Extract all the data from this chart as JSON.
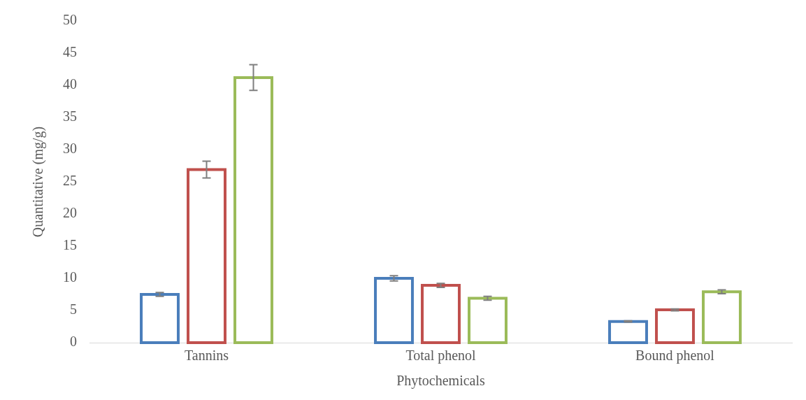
{
  "chart_data": {
    "type": "bar",
    "xlabel": "Phytochemicals",
    "ylabel": "Quantitative (mg/g)",
    "categories": [
      "Tannins",
      "Total phenol",
      "Bound phenol"
    ],
    "series": [
      {
        "color": "#4a7ebb",
        "values": [
          7.5,
          10.0,
          3.3
        ],
        "errors": [
          0.3,
          0.4,
          0.1
        ]
      },
      {
        "color": "#c0504d",
        "values": [
          26.9,
          8.9,
          5.1
        ],
        "errors": [
          1.3,
          0.3,
          0.15
        ]
      },
      {
        "color": "#9bbb59",
        "values": [
          41.2,
          6.9,
          7.9
        ],
        "errors": [
          2.0,
          0.3,
          0.3
        ]
      }
    ],
    "ylim": [
      0,
      50
    ],
    "yticks": [
      0,
      5,
      10,
      15,
      20,
      25,
      30,
      35,
      40,
      45,
      50
    ],
    "grid": false,
    "legend": false
  }
}
